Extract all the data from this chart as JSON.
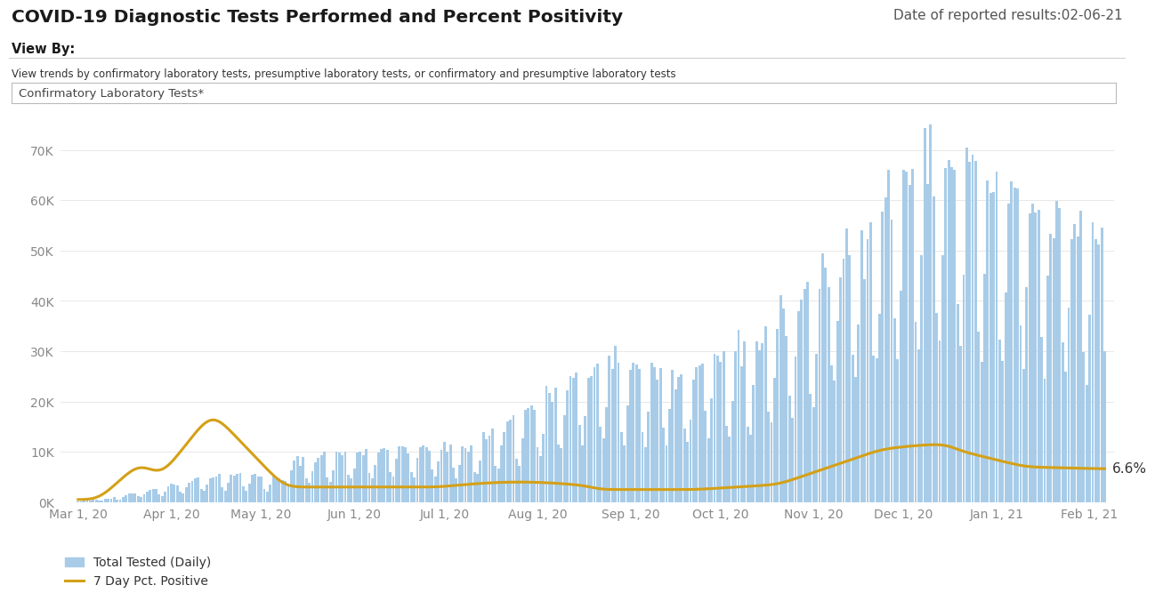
{
  "title": "COVID-19 Diagnostic Tests Performed and Percent Positivity",
  "date_label": "Date of reported results:02-06-21",
  "view_by_label": "View By:",
  "view_by_desc": "View trends by confirmatory laboratory tests, presumptive laboratory tests, or confirmatory and presumptive laboratory tests",
  "filter_label": "Confirmatory Laboratory Tests*",
  "bar_color": "#a8cce8",
  "line_color": "#d4a017",
  "annotation_text": "6.6%",
  "legend_bar": "Total Tested (Daily)",
  "legend_line": "7 Day Pct. Positive",
  "yticks": [
    0,
    10000,
    20000,
    30000,
    40000,
    50000,
    60000,
    70000
  ],
  "ytick_labels": [
    "0K",
    "10K",
    "20K",
    "30K",
    "40K",
    "50K",
    "60K",
    "70K"
  ],
  "xtick_labels": [
    "Mar 1, 20",
    "Apr 1, 20",
    "May 1, 20",
    "Jun 1, 20",
    "Jul 1, 20",
    "Aug 1, 20",
    "Sep 1, 20",
    "Oct 1, 20",
    "Nov 1, 20",
    "Dec 1, 20",
    "Jan 1, 21",
    "Feb 1, 21"
  ],
  "background_color": "#ffffff",
  "ylim": [
    0,
    75000
  ]
}
